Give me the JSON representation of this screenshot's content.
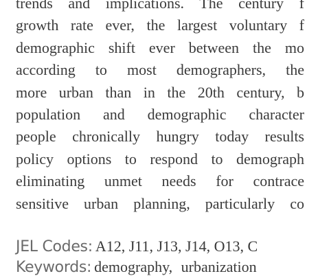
{
  "abstract": {
    "lines": [
      "trends and implications. The century f",
      "growth rate ever, the largest voluntary f",
      "demographic shift ever between the mo",
      "according to most demographers, the",
      "more urban than in the 20th century, b",
      "population and demographic character",
      "people chronically hungry today results",
      "policy options to respond to demograph",
      "eliminating unmet needs for contrace",
      "sensitive urban planning, particularly co"
    ]
  },
  "jel": {
    "label": "JEL Codes:",
    "value": "A12, J11, J13, J14, O13, C"
  },
  "keywords": {
    "label": "Keywords:",
    "value": "demography, urbanization"
  }
}
